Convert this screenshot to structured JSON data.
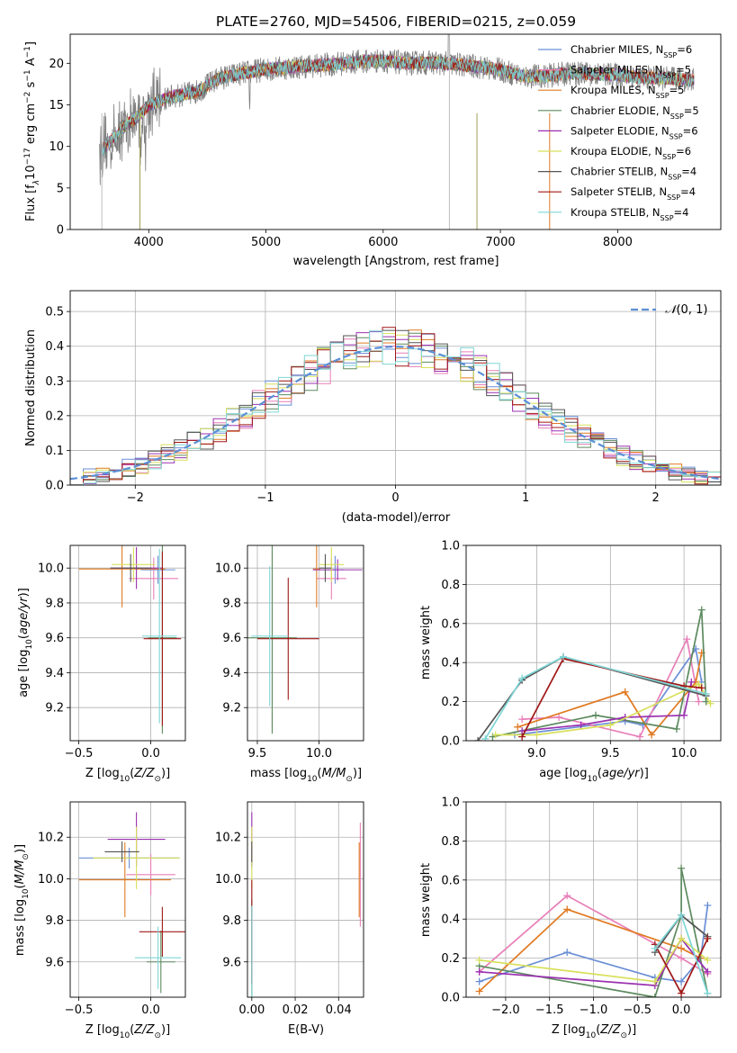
{
  "figure": {
    "title": "PLATE=2760, MJD=54506, FIBERID=0215, z=0.059",
    "colors": {
      "Chabrier MILES": "#6a8fd6",
      "Salpeter MILES": "#e87fb8",
      "Kroupa MILES": "#e07a22",
      "Chabrier ELODIE": "#5d8a5f",
      "Salpeter ELODIE": "#9b30b0",
      "Kroupa ELODIE": "#d8e05a",
      "Chabrier STELIB": "#555555",
      "Salpeter STELIB": "#a01818",
      "Kroupa STELIB": "#7fd6d6"
    }
  },
  "chart_data": [
    {
      "id": "spectrum",
      "type": "line",
      "title": "PLATE=2760, MJD=54506, FIBERID=0215, z=0.059",
      "xlabel": "wavelength [Angstrom, rest frame]",
      "ylabel": "Flux [f_λ 10⁻¹⁷ erg cm⁻² s⁻¹ A⁻¹]",
      "ylabel_parts": {
        "a": "Flux [f",
        "b": "λ",
        "c": "10",
        "d": "−17",
        "e": " erg cm",
        "f": "−2",
        "g": " s",
        "h": "−1",
        "i": " A",
        "j": "−1",
        "k": "]"
      },
      "xlim": [
        3330,
        8880
      ],
      "ylim": [
        0,
        23.5
      ],
      "xticks": [
        4000,
        5000,
        6000,
        7000,
        8000
      ],
      "yticks": [
        0,
        5,
        10,
        15,
        20
      ],
      "legend_placement": "top-right",
      "legend": [
        {
          "label": "Chabrier MILES, N",
          "sub": "SSP",
          "n": "=6"
        },
        {
          "label": "Salpeter MILES, N",
          "sub": "SSP",
          "n": "=5"
        },
        {
          "label": "Kroupa MILES, N",
          "sub": "SSP",
          "n": "=5"
        },
        {
          "label": "Chabrier ELODIE, N",
          "sub": "SSP",
          "n": "=5"
        },
        {
          "label": "Salpeter ELODIE, N",
          "sub": "SSP",
          "n": "=6"
        },
        {
          "label": "Kroupa ELODIE, N",
          "sub": "SSP",
          "n": "=6"
        },
        {
          "label": "Chabrier STELIB, N",
          "sub": "SSP",
          "n": "=4"
        },
        {
          "label": "Salpeter STELIB, N",
          "sub": "SSP",
          "n": "=4"
        },
        {
          "label": "Kroupa STELIB, N",
          "sub": "SSP",
          "n": "=4"
        }
      ],
      "data_trend": {
        "x": [
          3600,
          3700,
          3800,
          3900,
          4000,
          4200,
          4400,
          4600,
          4800,
          5000,
          5200,
          5400,
          5600,
          5800,
          6000,
          6200,
          6400,
          6600,
          6800,
          7000,
          7200,
          7400,
          7600,
          7800,
          8000,
          8200,
          8400,
          8600
        ],
        "y": [
          9.5,
          11.0,
          12.5,
          13.5,
          15.0,
          16.0,
          16.5,
          18.2,
          18.8,
          19.3,
          19.5,
          19.7,
          19.9,
          20.2,
          20.3,
          20.0,
          20.1,
          19.9,
          19.6,
          19.2,
          18.4,
          18.5,
          18.8,
          18.7,
          18.6,
          18.3,
          18.2,
          18.0
        ]
      }
    },
    {
      "id": "residuals",
      "type": "line",
      "xlabel": "(data-model)/error",
      "ylabel": "Normed distribution",
      "xlim": [
        -2.5,
        2.5
      ],
      "ylim": [
        0,
        0.56
      ],
      "xticks": [
        -2,
        -1,
        0,
        1,
        2
      ],
      "yticks": [
        0.0,
        0.1,
        0.2,
        0.3,
        0.4,
        0.5
      ],
      "legend_placement": "top-right",
      "legend": "N(0,1)",
      "bin_width": 0.1,
      "bin_start": -2.5,
      "gaussian": {
        "mean": 0,
        "sigma": 1
      }
    },
    {
      "id": "age_vs_Z",
      "type": "scatter",
      "xlabel": "Z [log10(Z/Z⊙)]",
      "ylabel": "age [log10(age/yr)]",
      "xlim": [
        -0.56,
        0.24
      ],
      "ylim": [
        9.01,
        10.13
      ],
      "xticks": [
        -0.5,
        0.0
      ],
      "yticks": [
        9.2,
        9.4,
        9.6,
        9.8,
        10.0
      ],
      "points": [
        {
          "model": "Chabrier MILES",
          "x": 0.05,
          "xerr": 0.12,
          "y": 9.99,
          "yerr": 0.08
        },
        {
          "model": "Salpeter MILES",
          "x": 0.02,
          "xerr": 0.17,
          "y": 9.94,
          "yerr": 0.12
        },
        {
          "model": "Kroupa MILES",
          "x": -0.2,
          "xerr": 0.3,
          "y": 9.995,
          "yerr": 0.22
        },
        {
          "model": "Chabrier ELODIE",
          "x": 0.08,
          "xerr": 0.1,
          "y": 9.6,
          "yerr": 0.55
        },
        {
          "model": "Salpeter ELODIE",
          "x": -0.1,
          "xerr": 0.18,
          "y": 10.0,
          "yerr": 0.12
        },
        {
          "model": "Kroupa ELODIE",
          "x": -0.12,
          "xerr": 0.15,
          "y": 10.02,
          "yerr": 0.1
        },
        {
          "model": "Chabrier STELIB",
          "x": -0.14,
          "xerr": 0.14,
          "y": 10.0,
          "yerr": 0.08
        },
        {
          "model": "Salpeter STELIB",
          "x": 0.08,
          "xerr": 0.13,
          "y": 9.595,
          "yerr": 0.5
        },
        {
          "model": "Kroupa STELIB",
          "x": 0.06,
          "xerr": 0.12,
          "y": 9.61,
          "yerr": 0.5
        }
      ]
    },
    {
      "id": "age_vs_mass",
      "type": "scatter",
      "xlabel": "mass [log10(M/M⊙)]",
      "ylabel": "",
      "xlim": [
        9.42,
        10.36
      ],
      "ylim": [
        9.01,
        10.13
      ],
      "xticks": [
        9.5,
        10.0
      ],
      "yticks": [
        9.2,
        9.4,
        9.6,
        9.8,
        10.0
      ],
      "points": [
        {
          "model": "Chabrier MILES",
          "x": 10.13,
          "xerr": 0.07,
          "y": 9.99,
          "yerr": 0.08
        },
        {
          "model": "Salpeter MILES",
          "x": 10.1,
          "xerr": 0.12,
          "y": 9.94,
          "yerr": 0.12
        },
        {
          "model": "Kroupa MILES",
          "x": 9.98,
          "xerr": 0.03,
          "y": 9.995,
          "yerr": 0.22
        },
        {
          "model": "Chabrier ELODIE",
          "x": 9.62,
          "xerr": 0.2,
          "y": 9.6,
          "yerr": 0.55
        },
        {
          "model": "Salpeter ELODIE",
          "x": 10.15,
          "xerr": 0.2,
          "y": 9.99,
          "yerr": 0.06
        },
        {
          "model": "Kroupa ELODIE",
          "x": 10.1,
          "xerr": 0.1,
          "y": 10.02,
          "yerr": 0.1
        },
        {
          "model": "Chabrier STELIB",
          "x": 10.05,
          "xerr": 0.05,
          "y": 10.0,
          "yerr": 0.08
        },
        {
          "model": "Salpeter STELIB",
          "x": 9.75,
          "xerr": 0.25,
          "y": 9.595,
          "yerr": 0.35
        },
        {
          "model": "Kroupa STELIB",
          "x": 9.6,
          "xerr": 0.15,
          "y": 9.61,
          "yerr": 0.4
        }
      ]
    },
    {
      "id": "weight_vs_age",
      "type": "line",
      "xlabel": "age [log10(age/yr)]",
      "ylabel": "mass weight",
      "xlim": [
        8.52,
        10.25
      ],
      "ylim": [
        0,
        1.0
      ],
      "xticks": [
        9.0,
        9.5,
        10.0
      ],
      "yticks": [
        0.0,
        0.2,
        0.4,
        0.6,
        0.8,
        1.0
      ],
      "series": [
        {
          "model": "Chabrier MILES",
          "x": [
            8.85,
            9.6,
            9.72,
            10.08,
            10.12
          ],
          "y": [
            0.03,
            0.1,
            0.08,
            0.47,
            0.3
          ]
        },
        {
          "model": "Salpeter MILES",
          "x": [
            8.9,
            9.15,
            9.7,
            10.02,
            10.1
          ],
          "y": [
            0.11,
            0.12,
            0.02,
            0.52,
            0.2
          ]
        },
        {
          "model": "Kroupa MILES",
          "x": [
            8.87,
            9.6,
            9.78,
            10.08,
            10.12
          ],
          "y": [
            0.07,
            0.25,
            0.03,
            0.3,
            0.45
          ]
        },
        {
          "model": "Chabrier ELODIE",
          "x": [
            8.7,
            9.4,
            9.95,
            10.12,
            10.15
          ],
          "y": [
            0.02,
            0.13,
            0.06,
            0.67,
            0.2
          ]
        },
        {
          "model": "Salpeter ELODIE",
          "x": [
            8.9,
            9.3,
            9.6,
            10.0,
            10.05
          ],
          "y": [
            0.05,
            0.08,
            0.12,
            0.13,
            0.3
          ]
        },
        {
          "model": "Kroupa ELODIE",
          "x": [
            8.72,
            9.0,
            9.5,
            10.1,
            10.18
          ],
          "y": [
            0.03,
            0.03,
            0.08,
            0.29,
            0.19
          ]
        },
        {
          "model": "Chabrier STELIB",
          "x": [
            8.6,
            8.9,
            9.18,
            10.15
          ],
          "y": [
            0.0,
            0.31,
            0.43,
            0.23
          ]
        },
        {
          "model": "Salpeter STELIB",
          "x": [
            8.9,
            9.18,
            10.0,
            10.12
          ],
          "y": [
            0.02,
            0.42,
            0.28,
            0.27
          ]
        },
        {
          "model": "Kroupa STELIB",
          "x": [
            8.65,
            8.9,
            9.18,
            10.15
          ],
          "y": [
            0.01,
            0.32,
            0.43,
            0.24
          ]
        }
      ]
    },
    {
      "id": "mass_vs_Z",
      "type": "scatter",
      "xlabel": "Z [log10(Z/Z⊙)]",
      "ylabel": "mass [log10(M/M⊙)]",
      "xlim": [
        -0.56,
        0.24
      ],
      "ylim": [
        9.43,
        10.37
      ],
      "xticks": [
        -0.5,
        0.0
      ],
      "yticks": [
        9.6,
        9.8,
        10.0,
        10.2
      ],
      "points": [
        {
          "model": "Chabrier MILES",
          "x": -0.15,
          "xerr": 0.35,
          "y": 10.1,
          "yerr": 0.05
        },
        {
          "model": "Salpeter MILES",
          "x": 0.0,
          "xerr": 0.17,
          "y": 10.02,
          "yerr": 0.1
        },
        {
          "model": "Kroupa MILES",
          "x": -0.18,
          "xerr": 0.32,
          "y": 9.995,
          "yerr": 0.18
        },
        {
          "model": "Chabrier ELODIE",
          "x": 0.07,
          "xerr": 0.1,
          "y": 9.6,
          "yerr": 0.15
        },
        {
          "model": "Salpeter ELODIE",
          "x": -0.1,
          "xerr": 0.2,
          "y": 10.19,
          "yerr": 0.13
        },
        {
          "model": "Kroupa ELODIE",
          "x": -0.1,
          "xerr": 0.3,
          "y": 10.1,
          "yerr": 0.15
        },
        {
          "model": "Chabrier STELIB",
          "x": -0.2,
          "xerr": 0.12,
          "y": 10.13,
          "yerr": 0.05
        },
        {
          "model": "Salpeter STELIB",
          "x": 0.08,
          "xerr": 0.16,
          "y": 9.745,
          "yerr": 0.12
        },
        {
          "model": "Kroupa STELIB",
          "x": 0.05,
          "xerr": 0.16,
          "y": 9.62,
          "yerr": 0.15
        }
      ]
    },
    {
      "id": "mass_vs_ebv",
      "type": "scatter",
      "xlabel": "E(B-V)",
      "ylabel": "",
      "xlim": [
        -0.002,
        0.0515
      ],
      "ylim": [
        9.43,
        10.37
      ],
      "xticks": [
        0.0,
        0.02,
        0.04
      ],
      "yticks": [
        9.6,
        9.8,
        10.0,
        10.2
      ],
      "points": [
        {
          "model": "Chabrier MILES",
          "x": 0.0,
          "y": 10.1,
          "yerr": 0.05
        },
        {
          "model": "Salpeter MILES",
          "x": 0.05,
          "y": 10.02,
          "yerr": 0.25
        },
        {
          "model": "Kroupa MILES",
          "x": 0.0495,
          "y": 9.995,
          "yerr": 0.18
        },
        {
          "model": "Chabrier ELODIE",
          "x": 0.0,
          "y": 9.6,
          "yerr": 0.3
        },
        {
          "model": "Salpeter ELODIE",
          "x": 0.0,
          "y": 10.19,
          "yerr": 0.13
        },
        {
          "model": "Kroupa ELODIE",
          "x": 0.0,
          "y": 10.1,
          "yerr": 0.15
        },
        {
          "model": "Chabrier STELIB",
          "x": 0.0,
          "y": 10.13,
          "yerr": 0.05
        },
        {
          "model": "Salpeter STELIB",
          "x": 0.0,
          "y": 9.745,
          "yerr": 0.25
        },
        {
          "model": "Kroupa STELIB",
          "x": 0.0,
          "y": 9.62,
          "yerr": 0.25
        }
      ]
    },
    {
      "id": "weight_vs_Z",
      "type": "line",
      "xlabel": "Z [log10(Z/Z⊙)]",
      "ylabel": "mass weight",
      "xlim": [
        -2.45,
        0.45
      ],
      "ylim": [
        0,
        1.0
      ],
      "xticks": [
        -2.0,
        -1.5,
        -1.0,
        -0.5,
        0.0
      ],
      "yticks": [
        0.0,
        0.2,
        0.4,
        0.6,
        0.8,
        1.0
      ],
      "series": [
        {
          "model": "Chabrier MILES",
          "x": [
            -2.3,
            -1.3,
            -0.3,
            0.0,
            0.22,
            0.3
          ],
          "y": [
            0.08,
            0.23,
            0.1,
            0.08,
            0.2,
            0.47
          ]
        },
        {
          "model": "Salpeter MILES",
          "x": [
            -2.3,
            -1.3,
            0.0,
            0.3
          ],
          "y": [
            0.13,
            0.52,
            0.2,
            0.12
          ]
        },
        {
          "model": "Kroupa MILES",
          "x": [
            -2.3,
            -1.3,
            0.0,
            0.22
          ],
          "y": [
            0.03,
            0.45,
            0.25,
            0.2
          ]
        },
        {
          "model": "Chabrier ELODIE",
          "x": [
            -2.3,
            -0.3,
            0.0,
            0.0,
            0.3
          ],
          "y": [
            0.16,
            0.0,
            0.42,
            0.66,
            0.02
          ]
        },
        {
          "model": "Salpeter ELODIE",
          "x": [
            -2.3,
            -0.3,
            0.0,
            0.3
          ],
          "y": [
            0.13,
            0.06,
            0.3,
            0.13
          ]
        },
        {
          "model": "Kroupa ELODIE",
          "x": [
            -2.3,
            -0.3,
            0.0,
            0.3
          ],
          "y": [
            0.19,
            0.08,
            0.3,
            0.19
          ]
        },
        {
          "model": "Chabrier STELIB",
          "x": [
            -0.3,
            0.0,
            0.3
          ],
          "y": [
            0.23,
            0.42,
            0.31
          ]
        },
        {
          "model": "Salpeter STELIB",
          "x": [
            -0.3,
            0.0,
            0.3
          ],
          "y": [
            0.27,
            0.02,
            0.3
          ]
        },
        {
          "model": "Kroupa STELIB",
          "x": [
            -0.3,
            0.0,
            0.3
          ],
          "y": [
            0.25,
            0.42,
            0.02
          ]
        }
      ]
    }
  ]
}
